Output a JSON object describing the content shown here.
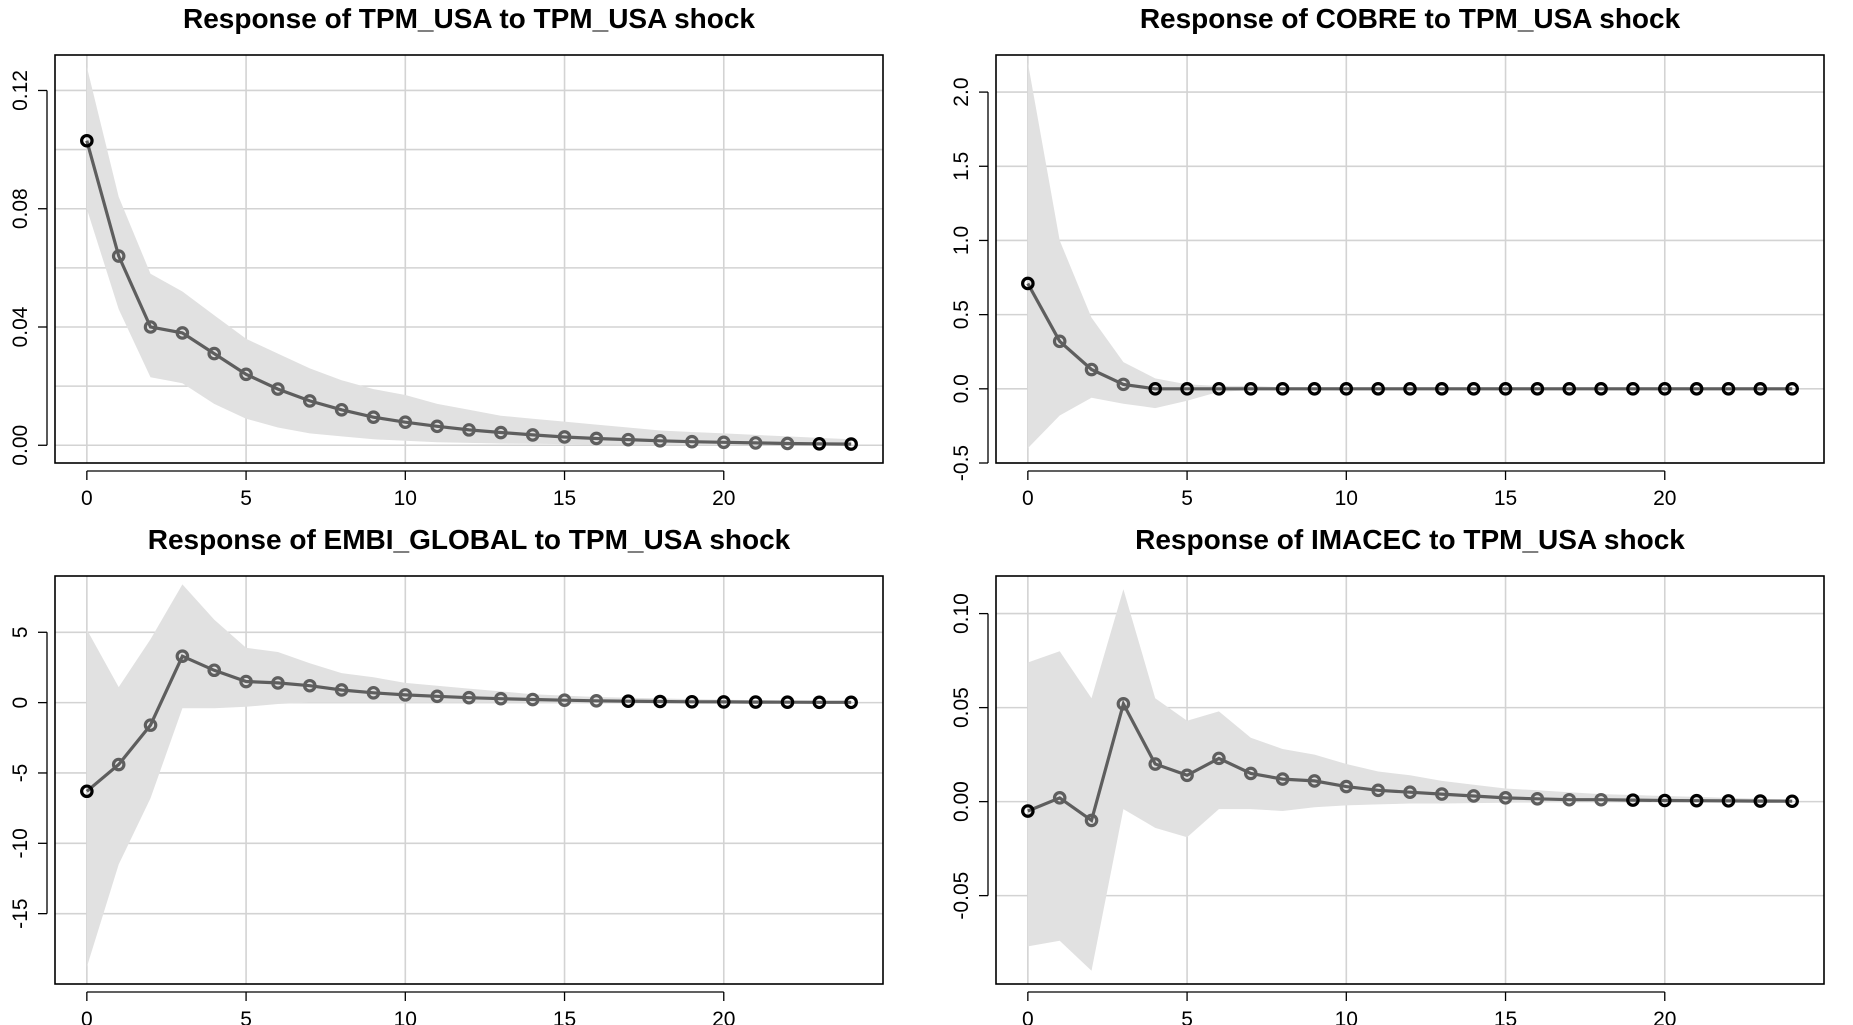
{
  "chart_data": [
    {
      "type": "line",
      "title": "Response of TPM_USA to TPM_USA shock",
      "xlabel": "",
      "ylabel": "",
      "x": [
        0,
        1,
        2,
        3,
        4,
        5,
        6,
        7,
        8,
        9,
        10,
        11,
        12,
        13,
        14,
        15,
        16,
        17,
        18,
        19,
        20,
        21,
        22,
        23,
        24
      ],
      "series": [
        {
          "values": [
            0.103,
            0.064,
            0.04,
            0.038,
            0.031,
            0.024,
            0.019,
            0.015,
            0.012,
            0.0095,
            0.0078,
            0.0064,
            0.0052,
            0.0043,
            0.0035,
            0.0028,
            0.0023,
            0.0019,
            0.0015,
            0.0012,
            0.001,
            0.0008,
            0.0006,
            0.0005,
            0.0004
          ]
        },
        {
          "values": [
            0.08,
            0.046,
            0.023,
            0.021,
            0.014,
            0.009,
            0.006,
            0.004,
            0.003,
            0.002,
            0.0015,
            0.001,
            0.0008,
            0.0006,
            0.0005,
            0.0004,
            0.0003,
            0.0002,
            0.0002,
            0.0001,
            0.0001,
            0.0001,
            0.0001,
            0.0,
            0.0
          ]
        },
        {
          "values": [
            0.128,
            0.084,
            0.058,
            0.052,
            0.044,
            0.036,
            0.031,
            0.026,
            0.022,
            0.019,
            0.017,
            0.014,
            0.012,
            0.01,
            0.009,
            0.008,
            0.007,
            0.006,
            0.005,
            0.0045,
            0.004,
            0.0035,
            0.003,
            0.0025,
            0.002
          ]
        }
      ],
      "xlim": [
        -1,
        25
      ],
      "ylim": [
        -0.006,
        0.132
      ],
      "xticks": [
        "0",
        "5",
        "10",
        "15",
        "20"
      ],
      "yticks": [
        "0.00",
        "0.04",
        "0.08",
        "0.12"
      ],
      "yticks_values": [
        0,
        0.04,
        0.08,
        0.12
      ],
      "ygrid": [
        0,
        0.02,
        0.04,
        0.06,
        0.08,
        0.1,
        0.12
      ],
      "grid": true,
      "band": true
    },
    {
      "type": "line",
      "title": "Response of COBRE to TPM_USA shock",
      "xlabel": "",
      "ylabel": "",
      "x": [
        0,
        1,
        2,
        3,
        4,
        5,
        6,
        7,
        8,
        9,
        10,
        11,
        12,
        13,
        14,
        15,
        16,
        17,
        18,
        19,
        20,
        21,
        22,
        23,
        24
      ],
      "series": [
        {
          "values": [
            0.71,
            0.32,
            0.13,
            0.03,
            0,
            0,
            0,
            0,
            0,
            0,
            0,
            0,
            0,
            0,
            0,
            0,
            0,
            0,
            0,
            0,
            0,
            0,
            0,
            0,
            0
          ]
        },
        {
          "values": [
            -0.4,
            -0.18,
            -0.06,
            -0.1,
            -0.13,
            -0.08,
            -0.02,
            -0.01,
            -0.01,
            0,
            0,
            0,
            0,
            0,
            0,
            0,
            0,
            0,
            0,
            0,
            0,
            0,
            0,
            0,
            0
          ]
        },
        {
          "values": [
            2.2,
            1.0,
            0.48,
            0.18,
            0.07,
            0.03,
            0.02,
            0.02,
            0.01,
            0.01,
            0.01,
            0.01,
            0.01,
            0.01,
            0.01,
            0.01,
            0.01,
            0.01,
            0.01,
            0.01,
            0.01,
            0.01,
            0.01,
            0.01,
            0.01
          ]
        }
      ],
      "xlim": [
        -1,
        25
      ],
      "ylim": [
        -0.5,
        2.25
      ],
      "xticks": [
        "0",
        "5",
        "10",
        "15",
        "20"
      ],
      "yticks": [
        "-0.5",
        "0.0",
        "0.5",
        "1.0",
        "1.5",
        "2.0"
      ],
      "yticks_values": [
        -0.5,
        0,
        0.5,
        1.0,
        1.5,
        2.0
      ],
      "ygrid": [
        -0.5,
        0,
        0.5,
        1.0,
        1.5,
        2.0
      ],
      "grid": true,
      "band": true
    },
    {
      "type": "line",
      "title": "Response of EMBI_GLOBAL to TPM_USA shock",
      "xlabel": "",
      "ylabel": "",
      "x": [
        0,
        1,
        2,
        3,
        4,
        5,
        6,
        7,
        8,
        9,
        10,
        11,
        12,
        13,
        14,
        15,
        16,
        17,
        18,
        19,
        20,
        21,
        22,
        23,
        24
      ],
      "series": [
        {
          "values": [
            -6.3,
            -4.4,
            -1.6,
            3.3,
            2.3,
            1.5,
            1.4,
            1.2,
            0.9,
            0.7,
            0.55,
            0.45,
            0.35,
            0.28,
            0.22,
            0.17,
            0.13,
            0.1,
            0.08,
            0.06,
            0.05,
            0.04,
            0.03,
            0.02,
            0.02
          ]
        },
        {
          "values": [
            -18.8,
            -11.5,
            -6.8,
            -0.4,
            -0.4,
            -0.3,
            -0.1,
            0,
            0,
            0,
            0,
            0,
            0,
            0,
            0,
            0,
            0,
            0,
            0,
            0,
            0,
            0,
            0,
            0,
            0
          ]
        },
        {
          "values": [
            5.2,
            1.1,
            4.5,
            8.4,
            5.9,
            3.9,
            3.6,
            2.8,
            2.1,
            1.8,
            1.4,
            1.2,
            1.0,
            0.8,
            0.6,
            0.5,
            0.4,
            0.35,
            0.3,
            0.25,
            0.2,
            0.18,
            0.15,
            0.12,
            0.1
          ]
        }
      ],
      "xlim": [
        -1,
        25
      ],
      "ylim": [
        -20,
        9
      ],
      "xticks": [
        "0",
        "5",
        "10",
        "15",
        "20"
      ],
      "yticks": [
        "-15",
        "-10",
        "-5",
        "0",
        "5"
      ],
      "yticks_values": [
        -15,
        -10,
        -5,
        0,
        5
      ],
      "ygrid": [
        -15,
        -10,
        -5,
        0,
        5
      ],
      "grid": true,
      "band": true
    },
    {
      "type": "line",
      "title": "Response of IMACEC to TPM_USA shock",
      "xlabel": "",
      "ylabel": "",
      "x": [
        0,
        1,
        2,
        3,
        4,
        5,
        6,
        7,
        8,
        9,
        10,
        11,
        12,
        13,
        14,
        15,
        16,
        17,
        18,
        19,
        20,
        21,
        22,
        23,
        24
      ],
      "series": [
        {
          "values": [
            -0.005,
            0.002,
            -0.01,
            0.052,
            0.02,
            0.014,
            0.023,
            0.015,
            0.012,
            0.011,
            0.008,
            0.006,
            0.005,
            0.004,
            0.003,
            0.002,
            0.0015,
            0.001,
            0.001,
            0.0008,
            0.0006,
            0.0005,
            0.0004,
            0.0003,
            0.0002
          ]
        },
        {
          "values": [
            -0.077,
            -0.074,
            -0.09,
            -0.004,
            -0.014,
            -0.019,
            -0.004,
            -0.004,
            -0.005,
            -0.003,
            -0.002,
            -0.0015,
            -0.001,
            -0.001,
            -0.0008,
            -0.0006,
            -0.0005,
            -0.0004,
            -0.0003,
            -0.0002,
            -0.0002,
            -0.0001,
            -0.0001,
            -0.0001,
            0
          ]
        },
        {
          "values": [
            0.074,
            0.08,
            0.055,
            0.113,
            0.055,
            0.043,
            0.048,
            0.034,
            0.028,
            0.025,
            0.02,
            0.016,
            0.014,
            0.011,
            0.009,
            0.007,
            0.006,
            0.005,
            0.004,
            0.0035,
            0.003,
            0.0025,
            0.002,
            0.0015,
            0.001
          ]
        }
      ],
      "xlim": [
        -1,
        25
      ],
      "ylim": [
        -0.097,
        0.12
      ],
      "xticks": [
        "0",
        "5",
        "10",
        "15",
        "20"
      ],
      "yticks": [
        "-0.05",
        "0.00",
        "0.05",
        "0.10"
      ],
      "yticks_values": [
        -0.05,
        0,
        0.05,
        0.1
      ],
      "ygrid": [
        -0.05,
        0,
        0.05,
        0.1
      ],
      "grid": true,
      "band": true
    }
  ],
  "colors": {
    "band": "#e1e1e1",
    "line": "#5e5e5e",
    "grid": "#d3d3d3",
    "frame": "#000000"
  }
}
